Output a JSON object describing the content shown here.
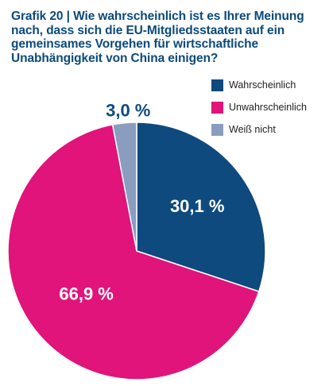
{
  "title": "Grafik 20 | Wie wahrscheinlich ist es Ihrer Meinung nach, dass sich die EU-Mitgliedsstaaten auf ein gemeinsames Vorgehen für wirtschaftliche Unabhängigkeit von China einigen?",
  "chart_data": {
    "type": "pie",
    "slices": [
      {
        "name": "Wahrscheinlich",
        "value": 30.1,
        "label": "30,1 %",
        "color": "#0e4a7e",
        "label_color": "#ffffff"
      },
      {
        "name": "Unwahrscheinlich",
        "value": 66.9,
        "label": "66,9 %",
        "color": "#e0147a",
        "label_color": "#ffffff"
      },
      {
        "name": "Weiß nicht",
        "value": 3.0,
        "label": "3,0 %",
        "color": "#8a9dbf",
        "label_color": "#0e4a7e"
      }
    ],
    "start_angle_deg": 0,
    "direction": "clockwise",
    "legend_position": "top-right"
  }
}
